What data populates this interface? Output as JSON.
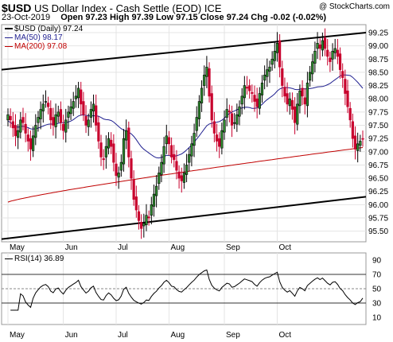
{
  "header": {
    "symbol": "$USD",
    "name": "US Dollar Index - Cash Settle (EOD)",
    "exchange": "ICE",
    "watermark": "@ StockCharts.com",
    "date": "23-Oct-2019",
    "ohlc_text": "Open 97.23  High 97.39  Low 97.15  Close 97.24  Chg -0.02 (-0.02%)"
  },
  "legend": {
    "price": "$USD (Daily) 97.24",
    "ma50": "MA(50) 98.17",
    "ma200": "MA(200) 97.08"
  },
  "rsi_label": "RSI(14) 36.89",
  "chart_data": [
    {
      "type": "candlestick",
      "title": "$USD (Daily)",
      "x_labels": [
        "May",
        "Jun",
        "Jul",
        "Aug",
        "Sep",
        "Oct"
      ],
      "y_ticks": [
        95.5,
        95.75,
        96.0,
        96.25,
        96.5,
        96.75,
        97.0,
        97.25,
        97.5,
        97.75,
        98.0,
        98.25,
        98.5,
        98.75,
        99.0,
        99.25
      ],
      "ylim": [
        95.3,
        99.4
      ],
      "closes_approx": [
        97.7,
        97.6,
        97.45,
        97.3,
        97.4,
        97.6,
        97.55,
        97.35,
        97.2,
        97.05,
        97.3,
        97.5,
        97.65,
        97.8,
        97.9,
        97.95,
        97.85,
        97.6,
        97.5,
        97.7,
        97.75,
        97.55,
        97.4,
        97.6,
        97.75,
        97.85,
        97.95,
        98.05,
        98.2,
        97.9,
        97.7,
        97.5,
        97.6,
        97.8,
        97.9,
        97.5,
        97.2,
        96.9,
        96.85,
        97.1,
        97.25,
        97.1,
        96.8,
        96.55,
        96.6,
        96.8,
        97.25,
        97.4,
        96.9,
        96.5,
        96.1,
        95.9,
        95.7,
        95.55,
        95.65,
        95.8,
        95.75,
        96.0,
        96.2,
        96.35,
        96.6,
        96.8,
        97.1,
        97.3,
        97.15,
        96.9,
        96.85,
        96.65,
        96.5,
        96.45,
        96.6,
        96.75,
        96.95,
        97.15,
        97.35,
        97.65,
        97.95,
        98.2,
        98.45,
        98.6,
        98.05,
        97.6,
        97.35,
        97.2,
        97.1,
        97.4,
        97.6,
        97.8,
        97.75,
        97.5,
        97.55,
        97.7,
        97.85,
        98.05,
        98.25,
        98.2,
        98.15,
        98.1,
        97.95,
        97.85,
        98.1,
        98.3,
        98.45,
        98.55,
        98.6,
        98.75,
        98.9,
        99.05,
        98.6,
        98.25,
        98.05,
        97.9,
        98.0,
        97.8,
        97.55,
        97.9,
        98.15,
        98.05,
        97.9,
        98.3,
        98.5,
        98.7,
        98.9,
        99.05,
        98.95,
        99.1,
        98.95,
        98.8,
        98.7,
        98.9,
        98.95,
        98.8,
        98.55,
        98.4,
        98.1,
        97.85,
        97.6,
        97.25,
        97.05,
        97.15,
        97.2,
        97.24
      ],
      "series": [
        {
          "name": "MA(50)",
          "color": "#1f1f8f",
          "last": 98.17
        },
        {
          "name": "MA(200)",
          "color": "#c00000",
          "last": 97.08
        },
        {
          "name": "Upper trend line",
          "color": "#000000",
          "from": 98.55,
          "to": 99.25
        },
        {
          "name": "Lower trend line",
          "color": "#000000",
          "from": 95.35,
          "to": 96.15
        }
      ],
      "candle_colors": {
        "up": "#000000",
        "up_fill": "#2e8b2e",
        "down": "#c8002d"
      }
    },
    {
      "type": "line",
      "title": "RSI(14)",
      "ylim": [
        0,
        100
      ],
      "y_ticks": [
        10,
        30,
        50,
        70,
        90
      ],
      "reference_lines": [
        30,
        50,
        70
      ],
      "last": 36.89
    }
  ]
}
